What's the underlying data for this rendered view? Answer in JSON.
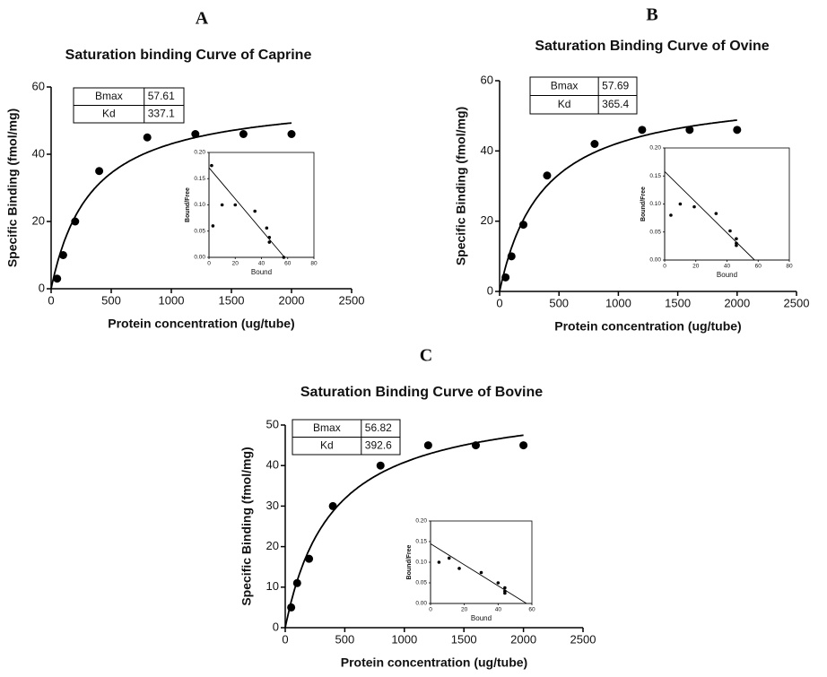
{
  "chart_data": [
    {
      "type": "saturation",
      "panel": "A",
      "title": "Saturation binding Curve of Caprine",
      "xlabel": "Protein concentration (ug/tube)",
      "ylabel": "Specific Binding (fmol/mg)",
      "x": [
        50,
        100,
        200,
        400,
        800,
        1200,
        1600,
        2000
      ],
      "values": [
        3,
        10,
        20,
        35,
        45,
        46,
        46,
        46
      ],
      "xlim": [
        0,
        2500
      ],
      "xticks": [
        0,
        500,
        1000,
        1500,
        2000,
        2500
      ],
      "ylim": [
        0,
        60
      ],
      "yticks": [
        0,
        20,
        40,
        60
      ],
      "table": {
        "rows": [
          [
            "Bmax",
            57.61
          ],
          [
            "Kd",
            337.1
          ]
        ]
      },
      "inset": {
        "xlabel": "Bound",
        "ylabel": "Bound/Free",
        "x": [
          2,
          3,
          10,
          20,
          35,
          44,
          46,
          46,
          57
        ],
        "values": [
          0.175,
          0.06,
          0.1,
          0.1,
          0.088,
          0.056,
          0.038,
          0.029,
          0
        ],
        "xlim": [
          0,
          80
        ],
        "xticks": [
          0,
          20,
          40,
          60,
          80
        ],
        "ylim": [
          0,
          0.2
        ],
        "yticks": [
          {
            "value": 0,
            "label": "0.00"
          },
          {
            "value": 0.05,
            "label": "0.05"
          },
          {
            "value": 0.1,
            "label": "0.10"
          },
          {
            "value": 0.15,
            "label": "0.15"
          },
          {
            "value": 0.2,
            "label": "0.20"
          }
        ]
      }
    },
    {
      "type": "saturation",
      "panel": "B",
      "title": "Saturation Binding Curve of Ovine",
      "xlabel": "Protein concentration (ug/tube)",
      "ylabel": "Specific Binding (fmol/mg)",
      "x": [
        50,
        100,
        200,
        400,
        800,
        1200,
        1600,
        2000
      ],
      "values": [
        4,
        10,
        19,
        33,
        42,
        46,
        46,
        46
      ],
      "xlim": [
        0,
        2500
      ],
      "xticks": [
        0,
        500,
        1000,
        1500,
        2000,
        2500
      ],
      "ylim": [
        0,
        60
      ],
      "yticks": [
        0,
        20,
        40,
        60
      ],
      "table": {
        "rows": [
          [
            "Bmax",
            57.69
          ],
          [
            "Kd",
            365.4
          ]
        ]
      },
      "inset": {
        "xlabel": "Bound",
        "ylabel": "Bound/Free",
        "x": [
          4,
          10,
          19,
          33,
          42,
          46,
          46,
          46
        ],
        "values": [
          0.08,
          0.1,
          0.095,
          0.083,
          0.052,
          0.038,
          0.03,
          0.026
        ],
        "xlim": [
          0,
          80
        ],
        "xticks": [
          0,
          20,
          40,
          60,
          80
        ],
        "ylim": [
          0,
          0.2
        ],
        "yticks": [
          {
            "value": 0,
            "label": "0.00"
          },
          {
            "value": 0.05,
            "label": "0.05"
          },
          {
            "value": 0.1,
            "label": "0.10"
          },
          {
            "value": 0.15,
            "label": "0.15"
          },
          {
            "value": 0.2,
            "label": "0.20"
          }
        ]
      }
    },
    {
      "type": "saturation",
      "panel": "C",
      "title": "Saturation Binding Curve of Bovine",
      "xlabel": "Protein concentration (ug/tube)",
      "ylabel": "Specific Binding (fmol/mg)",
      "x": [
        50,
        100,
        200,
        400,
        800,
        1200,
        1600,
        2000
      ],
      "values": [
        5,
        11,
        17,
        30,
        40,
        45,
        45,
        45
      ],
      "xlim": [
        0,
        2500
      ],
      "xticks": [
        0,
        500,
        1000,
        1500,
        2000,
        2500
      ],
      "ylim": [
        0,
        50
      ],
      "yticks": [
        0,
        10,
        20,
        30,
        40,
        50
      ],
      "table": {
        "rows": [
          [
            "Bmax",
            56.82
          ],
          [
            "Kd",
            392.6
          ]
        ]
      },
      "inset": {
        "xlabel": "Bound",
        "ylabel": "Bound/Free",
        "x": [
          5,
          11,
          17,
          30,
          40,
          44,
          44,
          44
        ],
        "values": [
          0.1,
          0.11,
          0.085,
          0.075,
          0.05,
          0.038,
          0.03,
          0.025
        ],
        "xlim": [
          0,
          60
        ],
        "xticks": [
          0,
          20,
          40,
          60
        ],
        "ylim": [
          0,
          0.2
        ],
        "yticks": [
          {
            "value": 0,
            "label": "0.00"
          },
          {
            "value": 0.05,
            "label": "0.05"
          },
          {
            "value": 0.1,
            "label": "0.10"
          },
          {
            "value": 0.15,
            "label": "0.15"
          },
          {
            "value": 0.2,
            "label": "0.20"
          }
        ]
      }
    }
  ]
}
